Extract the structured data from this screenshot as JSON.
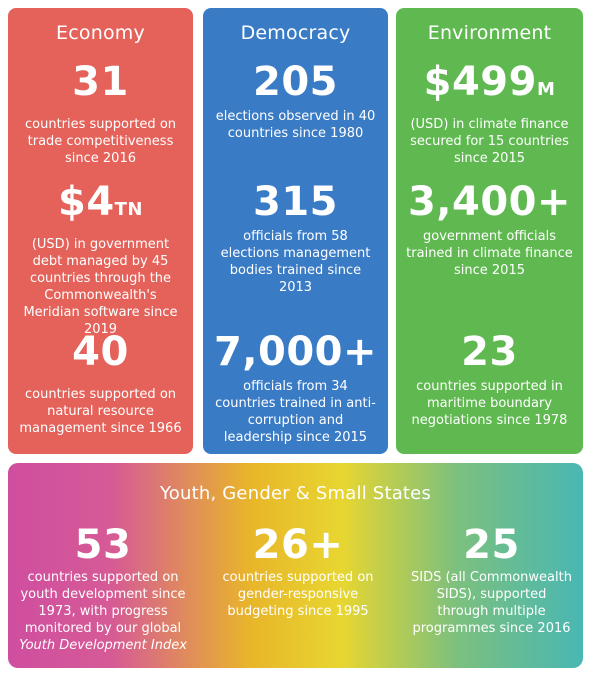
{
  "colors": {
    "economy": "#e4625a",
    "democracy": "#3a7bc6",
    "environment": "#5fb950",
    "bottom_gradient": [
      "#cf4ea0",
      "#e8b52a",
      "#e8d630",
      "#49b7b3"
    ]
  },
  "columns": [
    {
      "title": "Economy",
      "stats": [
        {
          "value": "31",
          "suffix": "",
          "text": "countries supported on trade competitiveness since 2016"
        },
        {
          "value": "$4",
          "suffix": "TN",
          "text": "(USD) in government debt managed by 45 countries through the Commonwealth's Meridian software since 2019"
        },
        {
          "value": "40",
          "suffix": "",
          "text": "countries supported on natural resource management since 1966"
        }
      ]
    },
    {
      "title": "Democracy",
      "stats": [
        {
          "value": "205",
          "suffix": "",
          "text": "elections observed in 40 countries since 1980"
        },
        {
          "value": "315",
          "suffix": "",
          "text": "officials from 58 elections management bodies trained since 2013"
        },
        {
          "value": "7,000+",
          "suffix": "",
          "text": "officials from 34 countries trained in anti-corruption and leadership since 2015"
        }
      ]
    },
    {
      "title": "Environment",
      "stats": [
        {
          "value": "$499",
          "suffix": "M",
          "text": "(USD) in climate finance secured for 15 countries since 2015"
        },
        {
          "value": "3,400+",
          "suffix": "",
          "text": "government officials trained in climate finance since 2015"
        },
        {
          "value": "23",
          "suffix": "",
          "text": "countries supported in maritime boundary negotiations since 1978"
        }
      ]
    }
  ],
  "bottom": {
    "title": "Youth, Gender & Small States",
    "stats": [
      {
        "value": "53",
        "text": "countries supported on youth development since 1973, with progress monitored by our global",
        "italic": "Youth Development Index"
      },
      {
        "value": "26+",
        "text": "countries supported on gender-responsive budgeting since 1995",
        "italic": ""
      },
      {
        "value": "25",
        "text": "SIDS (all Commonwealth SIDS), supported through multiple programmes since 2016",
        "italic": ""
      }
    ]
  }
}
